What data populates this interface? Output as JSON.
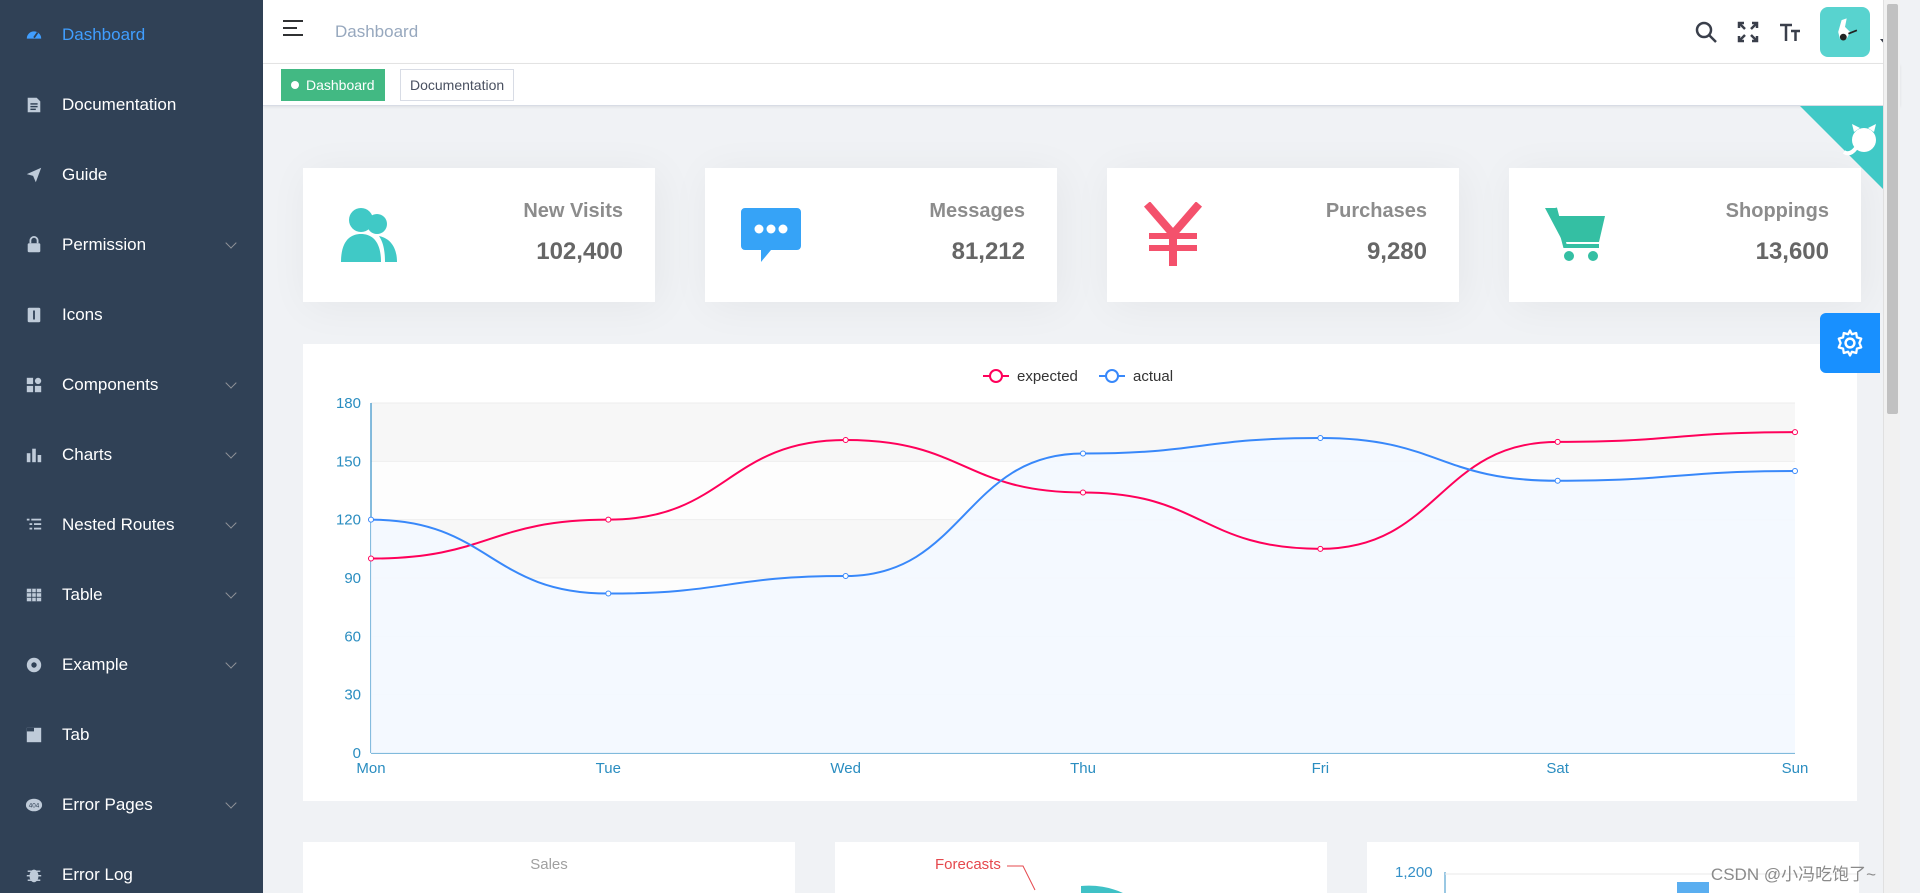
{
  "sidebar": {
    "items": [
      {
        "label": "Dashboard",
        "icon": "dashboard-icon",
        "active": true,
        "expandable": false
      },
      {
        "label": "Documentation",
        "icon": "documentation-icon",
        "active": false,
        "expandable": false
      },
      {
        "label": "Guide",
        "icon": "guide-icon",
        "active": false,
        "expandable": false
      },
      {
        "label": "Permission",
        "icon": "lock-icon",
        "active": false,
        "expandable": true
      },
      {
        "label": "Icons",
        "icon": "icons-icon",
        "active": false,
        "expandable": false
      },
      {
        "label": "Components",
        "icon": "components-icon",
        "active": false,
        "expandable": true
      },
      {
        "label": "Charts",
        "icon": "chart-icon",
        "active": false,
        "expandable": true
      },
      {
        "label": "Nested Routes",
        "icon": "nested-icon",
        "active": false,
        "expandable": true
      },
      {
        "label": "Table",
        "icon": "table-icon",
        "active": false,
        "expandable": true
      },
      {
        "label": "Example",
        "icon": "example-icon",
        "active": false,
        "expandable": true
      },
      {
        "label": "Tab",
        "icon": "tab-icon",
        "active": false,
        "expandable": false
      },
      {
        "label": "Error Pages",
        "icon": "404-icon",
        "active": false,
        "expandable": true
      },
      {
        "label": "Error Log",
        "icon": "bug-icon",
        "active": false,
        "expandable": false
      }
    ]
  },
  "navbar": {
    "breadcrumb": "Dashboard"
  },
  "tags": [
    {
      "label": "Dashboard",
      "active": true
    },
    {
      "label": "Documentation",
      "active": false
    }
  ],
  "cards": [
    {
      "title": "New Visits",
      "value": "102,400",
      "icon": "peoples-icon",
      "color": "#40c9c6"
    },
    {
      "title": "Messages",
      "value": "81,212",
      "icon": "message-icon",
      "color": "#36a3f7"
    },
    {
      "title": "Purchases",
      "value": "9,280",
      "icon": "money-icon",
      "color": "#f4516c"
    },
    {
      "title": "Shoppings",
      "value": "13,600",
      "icon": "shopping-icon",
      "color": "#34bfa3"
    }
  ],
  "chart_data": {
    "type": "line",
    "categories": [
      "Mon",
      "Tue",
      "Wed",
      "Thu",
      "Fri",
      "Sat",
      "Sun"
    ],
    "series": [
      {
        "name": "expected",
        "values": [
          100,
          120,
          161,
          134,
          105,
          160,
          165
        ],
        "color": "#FF005A"
      },
      {
        "name": "actual",
        "values": [
          120,
          82,
          91,
          154,
          162,
          140,
          145
        ],
        "color": "#3888fa"
      }
    ],
    "ylim": [
      0,
      180
    ],
    "yticks": [
      0,
      30,
      60,
      90,
      120,
      150,
      180
    ],
    "smooth": true,
    "legend": "top-center",
    "grid": true
  },
  "bottom": {
    "sales_title": "Sales",
    "forecasts_label": "Forecasts",
    "bar_tick": "1,200"
  },
  "watermark": "CSDN @小冯吃饱了~",
  "colors": {
    "sidebar_bg": "#304156",
    "active": "#409eff",
    "tag_active": "#42b983",
    "settings": "#1890ff",
    "github_corner": "#40c9c6"
  }
}
